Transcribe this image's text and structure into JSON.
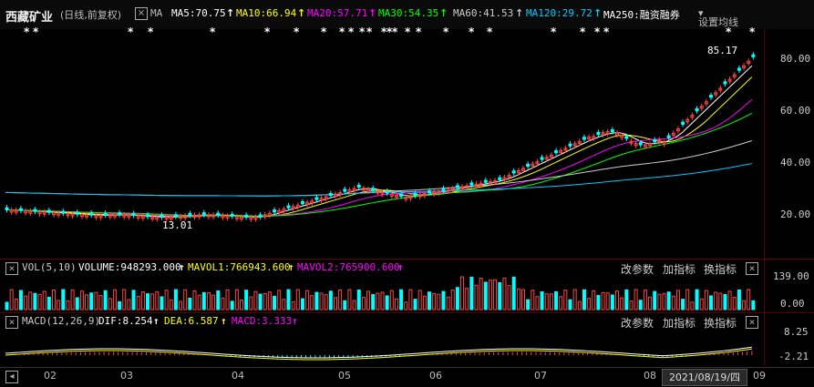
{
  "stock": {
    "name": "西藏矿业",
    "period": "(日线,前复权)",
    "ma_label": "MA"
  },
  "ma": [
    {
      "label": "MA5:70.75",
      "color": "#ffffff"
    },
    {
      "label": "MA10:66.94",
      "color": "#ffff00"
    },
    {
      "label": "MA20:57.71",
      "color": "#ff00ff"
    },
    {
      "label": "MA30:54.35",
      "color": "#00ff00"
    },
    {
      "label": "MA60:41.53",
      "color": "#cccccc"
    },
    {
      "label": "MA120:29.72",
      "color": "#00ccff"
    },
    {
      "label": "MA250:融资融券",
      "color": "#ffffff"
    }
  ],
  "settings_label": "设置均线",
  "price_axis": [
    "80.00",
    "60.00",
    "40.00",
    "20.00"
  ],
  "annotations": {
    "high": "85.17",
    "low": "13.01"
  },
  "vol_panel": {
    "name": "VOL(5,10)",
    "volume": "VOLUME:948293.000",
    "mavol1": "MAVOL1:766943.600",
    "mavol2": "MAVOL2:765900.600",
    "axis": [
      "139.00",
      "0.00"
    ]
  },
  "macd_panel": {
    "name": "MACD(12,26,9)",
    "dif": "DIF:8.254",
    "dea": "DEA:6.587",
    "macd": "MACD:3.333",
    "axis": [
      "8.25",
      "-2.21"
    ]
  },
  "links": {
    "params": "改参数",
    "add": "加指标",
    "swap": "换指标",
    "close": "×"
  },
  "months": [
    "02",
    "03",
    "04",
    "05",
    "06",
    "07",
    "08",
    "09"
  ],
  "date_badge": "2021/08/19/四",
  "colors": {
    "up": "#ff4444",
    "down": "#00ffff",
    "ma5": "#ffffff",
    "ma10": "#ffff00",
    "ma20": "#ff00ff",
    "ma30": "#00ff00",
    "ma60": "#cccccc",
    "ma120": "#00ccff"
  }
}
